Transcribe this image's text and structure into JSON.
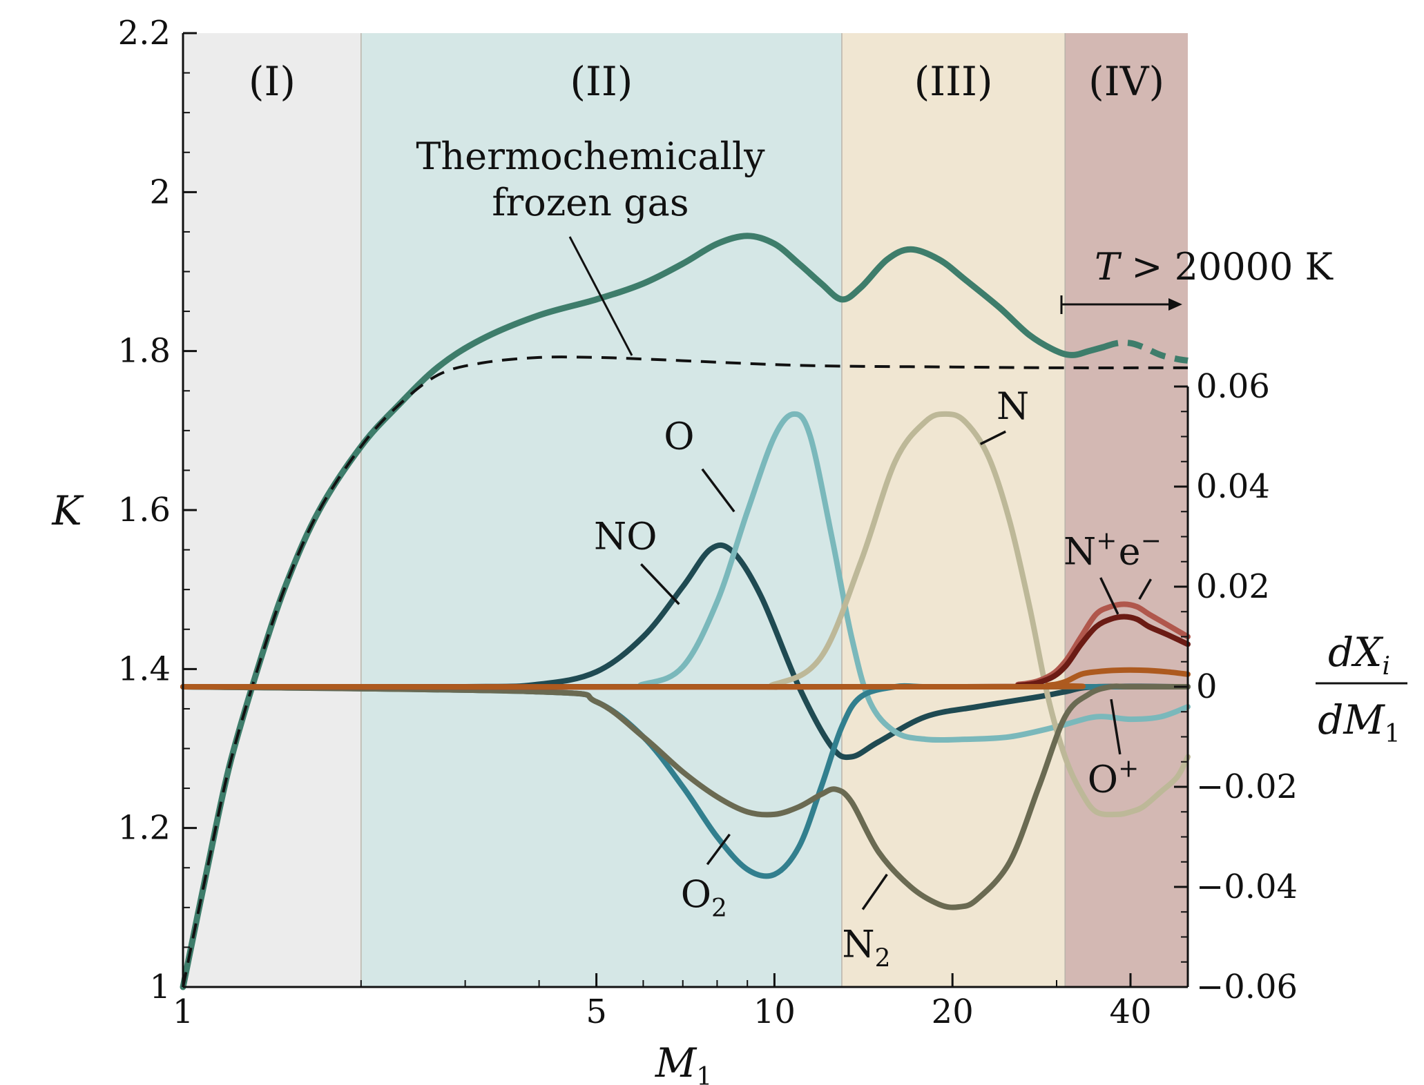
{
  "chart_data": {
    "type": "line",
    "x_axis": {
      "label_base": "M",
      "label_sub": "1",
      "scale": "log",
      "range": [
        1,
        50
      ],
      "ticks": [
        {
          "value": 1,
          "label": "1"
        },
        {
          "value": 5,
          "label": "5"
        },
        {
          "value": 10,
          "label": "10"
        },
        {
          "value": 20,
          "label": "20"
        },
        {
          "value": 40,
          "label": "40"
        }
      ]
    },
    "y_left": {
      "label": "K",
      "range": [
        1,
        2.2
      ],
      "ticks": [
        {
          "value": 1,
          "label": "1"
        },
        {
          "value": 1.2,
          "label": "1.2"
        },
        {
          "value": 1.4,
          "label": "1.4"
        },
        {
          "value": 1.6,
          "label": "1.6"
        },
        {
          "value": 1.8,
          "label": "1.8"
        },
        {
          "value": 2,
          "label": "2"
        },
        {
          "value": 2.2,
          "label": "2.2"
        }
      ]
    },
    "y_right": {
      "label_num": "dX",
      "label_num_sub": "i",
      "label_den": "dM",
      "label_den_sub": "1",
      "range": [
        -0.06,
        0.06
      ],
      "ticks": [
        {
          "value": -0.06,
          "label": "−0.06"
        },
        {
          "value": -0.04,
          "label": "−0.04"
        },
        {
          "value": -0.02,
          "label": "−0.02"
        },
        {
          "value": 0,
          "label": "0"
        },
        {
          "value": 0.02,
          "label": "0.02"
        },
        {
          "value": 0.04,
          "label": "0.04"
        },
        {
          "value": 0.06,
          "label": "0.06"
        }
      ]
    },
    "regions": [
      {
        "label": "(I)",
        "x_start": 1,
        "x_end": 2,
        "color": "#ececec"
      },
      {
        "label": "(II)",
        "x_start": 2,
        "x_end": 13,
        "color": "#d5e7e6"
      },
      {
        "label": "(III)",
        "x_start": 13,
        "x_end": 31,
        "color": "#f0e6d2"
      },
      {
        "label": "(IV)",
        "x_start": 31,
        "x_end": 50,
        "color": "#d3b8b3"
      }
    ],
    "annotations": {
      "frozen_line1": "Thermochemically",
      "frozen_line2": "frozen gas",
      "temperature_var": "T",
      "temperature_text": " > 20000 K"
    },
    "series": [
      {
        "name": "K",
        "axis": "left",
        "color": "#3e7d6b",
        "width": 9,
        "style": "solid",
        "x": [
          1,
          1.1,
          1.2,
          1.35,
          1.5,
          1.7,
          2,
          2.3,
          2.7,
          3.2,
          4,
          5,
          6,
          7,
          8,
          9,
          10,
          11,
          12,
          13,
          14,
          15.5,
          17,
          19,
          21,
          24,
          27,
          30,
          32,
          34,
          36
        ],
        "y": [
          1,
          1.15,
          1.28,
          1.41,
          1.51,
          1.6,
          1.68,
          1.73,
          1.78,
          1.815,
          1.845,
          1.865,
          1.885,
          1.91,
          1.935,
          1.945,
          1.935,
          1.91,
          1.885,
          1.865,
          1.88,
          1.915,
          1.928,
          1.915,
          1.89,
          1.855,
          1.82,
          1.8,
          1.795,
          1.8,
          1.805
        ]
      },
      {
        "name": "K",
        "axis": "left",
        "color": "#3e7d6b",
        "width": 9,
        "style": "dashed",
        "x": [
          36,
          38,
          40,
          42,
          45,
          48,
          50
        ],
        "y": [
          1.805,
          1.81,
          1.81,
          1.805,
          1.795,
          1.79,
          1.788
        ]
      },
      {
        "name": "Thermochemically frozen gas",
        "axis": "left",
        "color": "#111111",
        "width": 4,
        "style": "dashed",
        "x": [
          1,
          1.1,
          1.2,
          1.35,
          1.5,
          1.7,
          2,
          2.3,
          2.7,
          3.2,
          4,
          5,
          6,
          8,
          10,
          13,
          20,
          30,
          50
        ],
        "y": [
          1,
          1.15,
          1.28,
          1.41,
          1.51,
          1.6,
          1.68,
          1.73,
          1.77,
          1.785,
          1.792,
          1.792,
          1.79,
          1.786,
          1.783,
          1.781,
          1.78,
          1.779,
          1.779
        ]
      },
      {
        "name": "NO",
        "axis": "right",
        "color": "#1f4a52",
        "width": 8,
        "style": "solid",
        "x": [
          1,
          3,
          4,
          5,
          6,
          7,
          7.8,
          8.5,
          9.5,
          11,
          12.5,
          13.5,
          15,
          18,
          22,
          28,
          31,
          35,
          50
        ],
        "y": [
          0,
          0,
          0.0005,
          0.003,
          0.01,
          0.02,
          0.0275,
          0.027,
          0.018,
          0.0,
          -0.012,
          -0.014,
          -0.011,
          -0.006,
          -0.004,
          -0.002,
          -0.001,
          0,
          0
        ]
      },
      {
        "name": "O",
        "axis": "right",
        "color": "#7ab8bb",
        "width": 8,
        "style": "solid",
        "x": [
          1,
          5,
          6,
          7,
          8,
          9,
          10,
          10.8,
          11.5,
          12.5,
          13.5,
          14.5,
          16,
          18,
          21,
          25,
          30,
          35,
          40,
          45,
          50
        ],
        "y": [
          0,
          0,
          0.0005,
          0.004,
          0.017,
          0.035,
          0.05,
          0.0545,
          0.05,
          0.03,
          0.01,
          -0.003,
          -0.009,
          -0.0105,
          -0.0105,
          -0.01,
          -0.008,
          -0.006,
          -0.0065,
          -0.006,
          -0.004
        ]
      },
      {
        "name": "N",
        "axis": "right",
        "color": "#bdb898",
        "width": 8,
        "style": "solid",
        "x": [
          1,
          8,
          10,
          12,
          14,
          16,
          18,
          19.5,
          21,
          23,
          25,
          27,
          29,
          31,
          33,
          35,
          38,
          40,
          42,
          45,
          48,
          50
        ],
        "y": [
          0,
          0,
          0.0005,
          0.006,
          0.025,
          0.045,
          0.053,
          0.0545,
          0.053,
          0.046,
          0.033,
          0.016,
          -0.002,
          -0.014,
          -0.021,
          -0.025,
          -0.0255,
          -0.025,
          -0.024,
          -0.021,
          -0.018,
          -0.014
        ]
      },
      {
        "name": "O₂",
        "axis": "right",
        "color": "#327f8e",
        "width": 8,
        "style": "solid",
        "x": [
          1,
          4,
          5,
          6,
          7,
          8,
          9,
          10,
          11,
          12,
          13,
          14,
          16,
          18,
          22,
          30,
          50
        ],
        "y": [
          0,
          -0.001,
          -0.003,
          -0.01,
          -0.02,
          -0.03,
          -0.0365,
          -0.0375,
          -0.032,
          -0.02,
          -0.008,
          -0.002,
          0,
          0,
          0,
          0,
          0
        ]
      },
      {
        "name": "N₂",
        "axis": "right",
        "color": "#6a6a52",
        "width": 8,
        "style": "solid",
        "x": [
          1,
          4,
          5,
          6,
          7,
          8,
          9,
          10,
          11,
          12,
          12.7,
          13.5,
          15,
          17,
          19,
          20.5,
          22,
          25,
          28,
          31,
          34,
          37,
          40,
          50
        ],
        "y": [
          0,
          -0.001,
          -0.003,
          -0.01,
          -0.017,
          -0.022,
          -0.025,
          -0.0255,
          -0.024,
          -0.0215,
          -0.0205,
          -0.023,
          -0.033,
          -0.04,
          -0.0435,
          -0.044,
          -0.0425,
          -0.035,
          -0.02,
          -0.006,
          -0.0015,
          0,
          0,
          0
        ]
      },
      {
        "name": "e⁻",
        "axis": "right",
        "color": "#b0574c",
        "width": 8,
        "style": "solid",
        "x": [
          1,
          20,
          26,
          29,
          31,
          33,
          35,
          37,
          39,
          41,
          43,
          46,
          50
        ],
        "y": [
          0,
          0,
          0.0005,
          0.002,
          0.005,
          0.01,
          0.0145,
          0.016,
          0.0165,
          0.016,
          0.0145,
          0.0125,
          0.01
        ]
      },
      {
        "name": "N⁺",
        "axis": "right",
        "color": "#6b1b14",
        "width": 8,
        "style": "solid",
        "x": [
          1,
          20,
          26,
          29,
          31,
          33,
          35,
          37,
          39,
          41,
          43,
          46,
          50
        ],
        "y": [
          0,
          0,
          0.0003,
          0.0015,
          0.004,
          0.0085,
          0.012,
          0.0135,
          0.014,
          0.0135,
          0.012,
          0.0105,
          0.0085
        ]
      },
      {
        "name": "O⁺",
        "axis": "right",
        "color": "#ad5a1f",
        "width": 8,
        "style": "solid",
        "x": [
          1,
          25,
          29,
          31,
          33,
          35,
          38,
          42,
          46,
          50
        ],
        "y": [
          0,
          0,
          0.0003,
          0.001,
          0.0025,
          0.003,
          0.0033,
          0.0033,
          0.003,
          0.0025
        ]
      }
    ],
    "labels": [
      {
        "name": "NO",
        "base": "NO",
        "text_x": 5.6,
        "text_y": 0.0275,
        "leader": [
          [
            5.95,
            0.0245
          ],
          [
            6.9,
            0.0165
          ]
        ]
      },
      {
        "name": "O",
        "base": "O",
        "text_x": 6.9,
        "text_y": 0.0475,
        "leader": [
          [
            7.55,
            0.0435
          ],
          [
            8.55,
            0.035
          ]
        ]
      },
      {
        "name": "N",
        "base": "N",
        "text_x": 25.3,
        "text_y": 0.0535,
        "leader": [
          [
            24.6,
            0.051
          ],
          [
            22.3,
            0.0485
          ]
        ]
      },
      {
        "name": "O₂",
        "base": "O",
        "sub": "2",
        "text_x": 7.6,
        "text_y": -0.044,
        "leader": [
          [
            7.7,
            -0.0355
          ],
          [
            8.4,
            -0.0295
          ]
        ]
      },
      {
        "name": "N₂",
        "base": "N",
        "sub": "2",
        "text_x": 14.3,
        "text_y": -0.054,
        "leader": [
          [
            14.1,
            -0.0445
          ],
          [
            15.5,
            -0.0375
          ]
        ]
      },
      {
        "name": "N⁺",
        "base": "N",
        "sup": "+",
        "text_x": 34.2,
        "text_y": 0.0245,
        "leader": [
          [
            35.6,
            0.0218
          ],
          [
            38.1,
            0.0145
          ]
        ]
      },
      {
        "name": "e⁻",
        "base": "e",
        "sup": "−",
        "text_x": 41.5,
        "text_y": 0.0245,
        "leader": [
          [
            43.3,
            0.0215
          ],
          [
            41.4,
            0.0175
          ]
        ]
      },
      {
        "name": "O⁺",
        "base": "O",
        "sup": "+",
        "text_x": 37.4,
        "text_y": -0.021,
        "leader": [
          [
            38.4,
            -0.0135
          ],
          [
            37.1,
            -0.0025
          ]
        ]
      }
    ]
  }
}
